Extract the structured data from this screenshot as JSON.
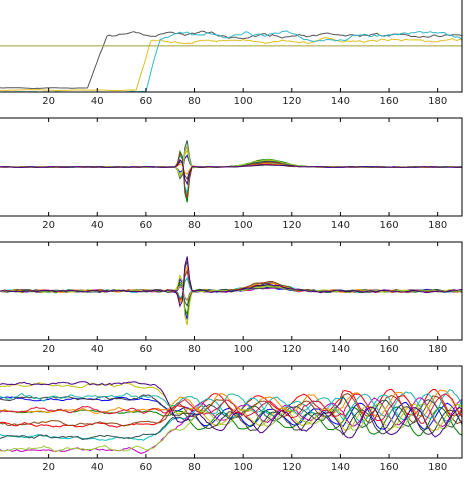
{
  "chart_data": [
    {
      "type": "line",
      "xlim": [
        0,
        190
      ],
      "ylim": [
        0,
        1
      ],
      "x_ticks": [
        20,
        40,
        60,
        80,
        100,
        120,
        140,
        160,
        180
      ],
      "grid": false,
      "series": [
        {
          "color": "#555555",
          "kind": "step",
          "rise_at": 36,
          "rise_end": 44,
          "low": 0.04,
          "high": 0.58,
          "noise": 0.07,
          "seed": 1
        },
        {
          "color": "#E0C020",
          "kind": "step",
          "rise_at": 56,
          "rise_end": 62,
          "low": 0.02,
          "high": 0.52,
          "noise": 0.06,
          "seed": 2
        },
        {
          "color": "#30B8C8",
          "kind": "step",
          "rise_at": 60,
          "rise_end": 66,
          "low": 0.0,
          "high": 0.58,
          "noise": 0.09,
          "seed": 3
        },
        {
          "color": "#A0A030",
          "kind": "flat",
          "level": 0.47
        }
      ]
    },
    {
      "type": "line",
      "xlim": [
        0,
        190
      ],
      "ylim": [
        -1,
        1
      ],
      "x_ticks": [
        20,
        40,
        60,
        80,
        100,
        120,
        140,
        160,
        180
      ],
      "grid": false,
      "n_series": 12,
      "spike_at": 76,
      "spike_amplitude": 0.75,
      "bump_at": 110,
      "bump_amplitude": 0.12,
      "noise": 0.01
    },
    {
      "type": "line",
      "xlim": [
        0,
        190
      ],
      "ylim": [
        -1,
        1
      ],
      "x_ticks": [
        20,
        40,
        60,
        80,
        100,
        120,
        140,
        160,
        180
      ],
      "grid": false,
      "n_series": 12,
      "spike_at": 76,
      "spike_amplitude": 0.75,
      "bump_at": 110,
      "bump_amplitude": 0.15,
      "noise": 0.04
    },
    {
      "type": "line",
      "xlim": [
        0,
        190
      ],
      "ylim": [
        -1,
        1
      ],
      "x_ticks": [
        20,
        40,
        60,
        80,
        100,
        120,
        140,
        160,
        180
      ],
      "grid": false,
      "n_series": 14,
      "transition_at": 70,
      "spread_before": 0.85,
      "spread_after": 0.25,
      "noise": 0.08
    }
  ],
  "palette": [
    "#0000ff",
    "#008000",
    "#ff0000",
    "#00bfbf",
    "#bf00bf",
    "#bfbf00",
    "#404040",
    "#ff8c00",
    "#8b4513",
    "#2f4f4f",
    "#9acd32",
    "#4b0082",
    "#20b2aa",
    "#dc143c"
  ]
}
